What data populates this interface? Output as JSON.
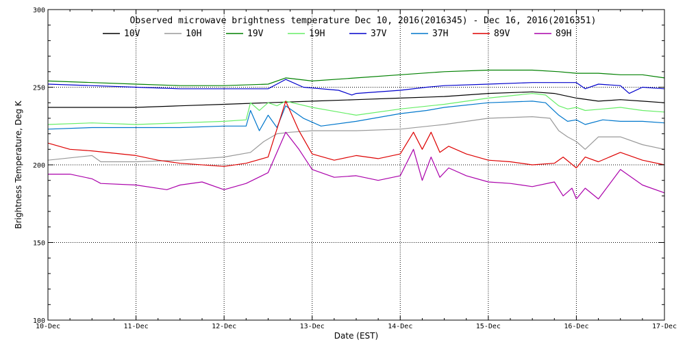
{
  "chart_data": {
    "type": "line",
    "title": "Observed microwave brightness temperature Dec 10, 2016(2016345) - Dec 16, 2016(2016351)",
    "xlabel": "Date (EST)",
    "ylabel": "Brightness Temperature, Deg K",
    "xlim": [
      0,
      7
    ],
    "ylim": [
      100,
      300
    ],
    "x_tick_labels": [
      "10-Dec",
      "11-Dec",
      "12-Dec",
      "13-Dec",
      "14-Dec",
      "15-Dec",
      "16-Dec",
      "17-Dec"
    ],
    "x_ticks": [
      0,
      1,
      2,
      3,
      4,
      5,
      6,
      7
    ],
    "y_ticks": [
      100,
      150,
      200,
      250,
      300
    ],
    "y_tick_labels": [
      "100",
      "150",
      "200",
      "250",
      "300"
    ],
    "grid": true,
    "legend_position": "top",
    "series": [
      {
        "name": "10V",
        "color": "#000000",
        "x": [
          0,
          0.5,
          1,
          1.5,
          2,
          2.5,
          3,
          3.5,
          4,
          4.5,
          5,
          5.5,
          5.75,
          6,
          6.25,
          6.5,
          6.75,
          7
        ],
        "y": [
          237,
          237,
          237,
          238,
          239,
          240,
          241,
          242,
          243,
          244,
          246,
          247,
          246,
          243,
          241,
          242,
          241,
          240
        ]
      },
      {
        "name": "10H",
        "color": "#999999",
        "x": [
          0,
          0.5,
          0.6,
          1,
          1.5,
          2,
          2.3,
          2.45,
          2.6,
          2.75,
          3,
          3.5,
          4,
          4.5,
          5,
          5.5,
          5.7,
          5.8,
          5.9,
          6,
          6.1,
          6.25,
          6.5,
          6.75,
          7
        ],
        "y": [
          203,
          206,
          202,
          202,
          203,
          205,
          208,
          215,
          220,
          221,
          222,
          222,
          223,
          226,
          230,
          231,
          230,
          222,
          218,
          215,
          210,
          218,
          218,
          213,
          210
        ]
      },
      {
        "name": "19V",
        "color": "#008000",
        "x": [
          0,
          0.5,
          1,
          1.5,
          2,
          2.5,
          2.7,
          3,
          3.5,
          4,
          4.5,
          5,
          5.5,
          5.8,
          6,
          6.25,
          6.5,
          6.75,
          7
        ],
        "y": [
          254,
          253,
          252,
          251,
          251,
          252,
          256,
          254,
          256,
          258,
          260,
          261,
          261,
          260,
          259,
          259,
          258,
          258,
          256
        ]
      },
      {
        "name": "19H",
        "color": "#66ee66",
        "x": [
          0,
          0.5,
          1,
          1.5,
          2,
          2.25,
          2.3,
          2.4,
          2.5,
          2.6,
          2.7,
          3,
          3.5,
          4,
          4.5,
          5,
          5.5,
          5.65,
          5.8,
          5.9,
          6,
          6.1,
          6.3,
          6.5,
          6.75,
          7
        ],
        "y": [
          226,
          227,
          226,
          227,
          228,
          229,
          240,
          235,
          240,
          238,
          241,
          237,
          232,
          236,
          239,
          243,
          246,
          245,
          238,
          236,
          237,
          235,
          236,
          237,
          235,
          234
        ]
      },
      {
        "name": "37V",
        "color": "#0000cc",
        "x": [
          0,
          0.5,
          1,
          1.5,
          2,
          2.5,
          2.7,
          2.9,
          3.3,
          3.45,
          3.5,
          4,
          4.3,
          4.5,
          5,
          5.5,
          6,
          6.1,
          6.25,
          6.5,
          6.6,
          6.75,
          7
        ],
        "y": [
          252,
          251,
          250,
          249,
          249,
          249,
          255,
          250,
          248,
          245,
          246,
          248,
          250,
          251,
          252,
          253,
          253,
          249,
          252,
          251,
          246,
          250,
          249
        ]
      },
      {
        "name": "37H",
        "color": "#0077cc",
        "x": [
          0,
          0.5,
          1,
          1.5,
          2,
          2.25,
          2.3,
          2.4,
          2.5,
          2.6,
          2.7,
          2.9,
          3.1,
          3.5,
          4,
          4.3,
          4.5,
          5,
          5.5,
          5.65,
          5.8,
          5.9,
          6,
          6.1,
          6.3,
          6.5,
          6.75,
          7
        ],
        "y": [
          223,
          224,
          224,
          224,
          225,
          225,
          235,
          222,
          232,
          224,
          238,
          230,
          225,
          228,
          233,
          235,
          237,
          240,
          241,
          240,
          232,
          228,
          229,
          226,
          229,
          228,
          228,
          227
        ]
      },
      {
        "name": "89V",
        "color": "#dd0000",
        "x": [
          0,
          0.25,
          0.5,
          1,
          1.25,
          1.5,
          2,
          2.25,
          2.5,
          2.7,
          2.85,
          3,
          3.25,
          3.5,
          3.75,
          4,
          4.15,
          4.25,
          4.35,
          4.45,
          4.55,
          4.75,
          5,
          5.25,
          5.5,
          5.75,
          5.85,
          6,
          6.1,
          6.25,
          6.5,
          6.75,
          7
        ],
        "y": [
          214,
          210,
          209,
          206,
          203,
          201,
          199,
          201,
          205,
          241,
          222,
          207,
          203,
          206,
          204,
          207,
          221,
          210,
          221,
          208,
          212,
          207,
          203,
          202,
          200,
          201,
          205,
          198,
          205,
          202,
          208,
          203,
          200
        ]
      },
      {
        "name": "89H",
        "color": "#aa00aa",
        "x": [
          0,
          0.25,
          0.5,
          0.6,
          1,
          1.35,
          1.5,
          1.75,
          2,
          2.25,
          2.5,
          2.7,
          2.85,
          3,
          3.25,
          3.5,
          3.75,
          4,
          4.15,
          4.25,
          4.35,
          4.45,
          4.55,
          4.75,
          5,
          5.25,
          5.5,
          5.75,
          5.85,
          5.95,
          6,
          6.1,
          6.25,
          6.5,
          6.75,
          7
        ],
        "y": [
          194,
          194,
          191,
          188,
          187,
          184,
          187,
          189,
          184,
          188,
          195,
          221,
          210,
          197,
          192,
          193,
          190,
          193,
          210,
          190,
          205,
          192,
          198,
          193,
          189,
          188,
          186,
          189,
          180,
          185,
          178,
          185,
          178,
          197,
          187,
          182
        ]
      }
    ]
  }
}
